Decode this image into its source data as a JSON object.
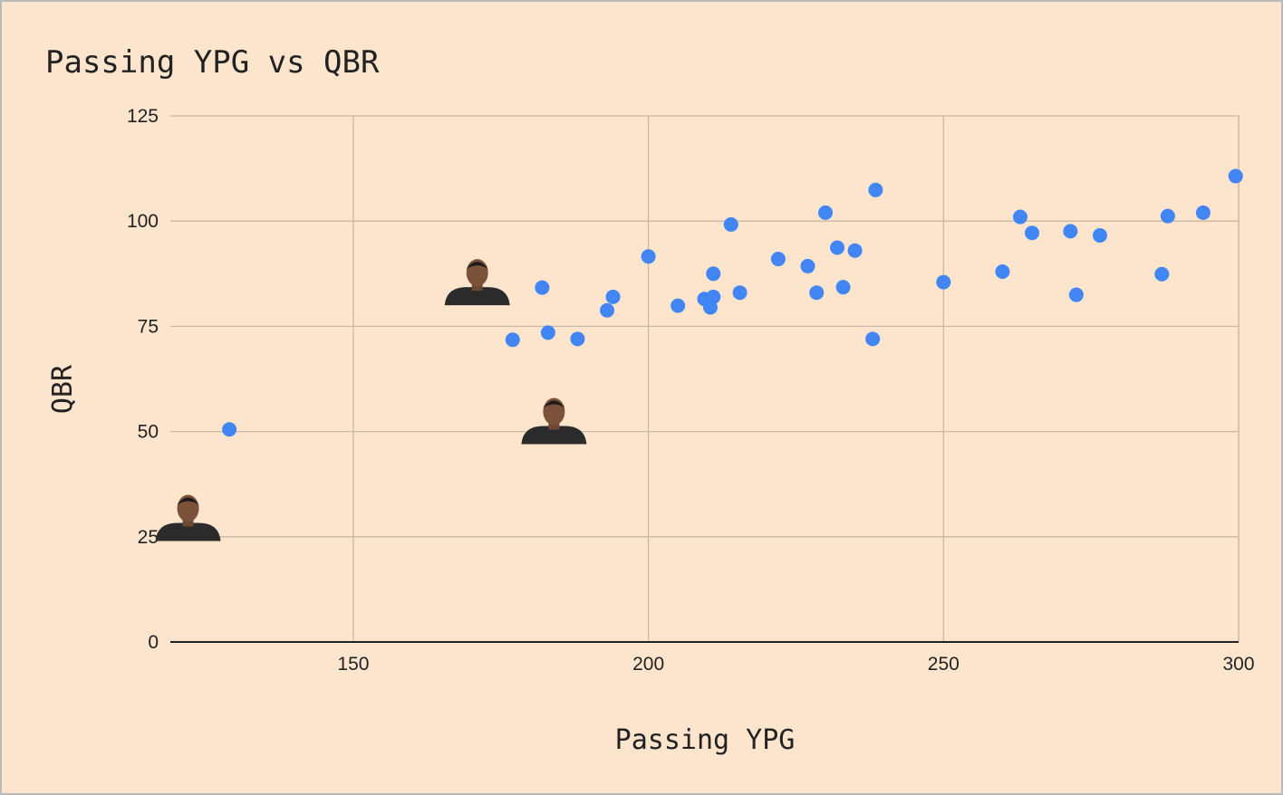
{
  "chart_data": {
    "type": "scatter",
    "title": "Passing YPG vs QBR",
    "xlabel": "Passing YPG",
    "ylabel": "QBR",
    "xlim": [
      119,
      300
    ],
    "ylim": [
      0,
      125
    ],
    "x_ticks": [
      150,
      200,
      250,
      300
    ],
    "y_ticks": [
      0,
      25,
      50,
      75,
      100,
      125
    ],
    "grid": true,
    "legend": "none",
    "colors": {
      "background": "#fde5cd",
      "point": "#4285f4",
      "grid": "#c9b8a6",
      "axis": "#222222"
    },
    "series": [
      {
        "points": [
          [
            129,
            50.5
          ],
          [
            177,
            71.8
          ],
          [
            182,
            84.2
          ],
          [
            183,
            73.5
          ],
          [
            188,
            72.0
          ],
          [
            193,
            78.8
          ],
          [
            194,
            82.0
          ],
          [
            200,
            91.6
          ],
          [
            205,
            79.9
          ],
          [
            209.5,
            81.5
          ],
          [
            210.5,
            79.5
          ],
          [
            211,
            87.5
          ],
          [
            211,
            82.0
          ],
          [
            214,
            99.2
          ],
          [
            215.5,
            83.0
          ],
          [
            222,
            91.0
          ],
          [
            227,
            89.3
          ],
          [
            228.5,
            83.0
          ],
          [
            230,
            102.0
          ],
          [
            232,
            93.7
          ],
          [
            233,
            84.3
          ],
          [
            235,
            93.0
          ],
          [
            238,
            72.0
          ],
          [
            238.5,
            107.4
          ],
          [
            250,
            85.5
          ],
          [
            260,
            88.0
          ],
          [
            263,
            101.0
          ],
          [
            265,
            97.2
          ],
          [
            271.5,
            97.6
          ],
          [
            272.5,
            82.5
          ],
          [
            276.5,
            96.6
          ],
          [
            287,
            87.4
          ],
          [
            288,
            101.2
          ],
          [
            294,
            102.0
          ],
          [
            299.5,
            110.7
          ]
        ]
      }
    ],
    "annotations": [
      {
        "icon": "player-headshot-icon",
        "x": 171,
        "y": 80
      },
      {
        "icon": "player-headshot-icon",
        "x": 184,
        "y": 47
      },
      {
        "icon": "player-headshot-icon",
        "x": 122,
        "y": 24
      }
    ]
  }
}
